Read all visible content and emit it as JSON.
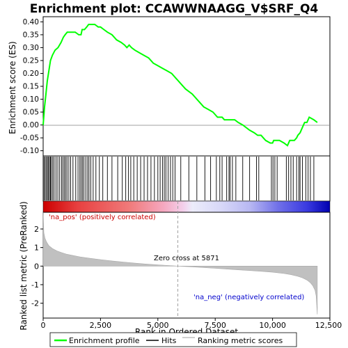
{
  "chart_data": {
    "type": "line",
    "title": "Enrichment plot: CCAWWNAAGG_V$SRF_Q4",
    "top_panel": {
      "ylabel": "Enrichment score (ES)",
      "ylim": [
        -0.12,
        0.42
      ],
      "yticks": [
        -0.1,
        -0.05,
        0.0,
        0.05,
        0.1,
        0.15,
        0.2,
        0.25,
        0.3,
        0.35,
        0.4
      ],
      "ytick_labels": [
        "-0.10",
        "-0.05",
        "0.00",
        "0.05",
        "0.10",
        "0.15",
        "0.20",
        "0.25",
        "0.30",
        "0.35",
        "0.40"
      ],
      "series": [
        {
          "name": "Enrichment profile",
          "color": "#00ff00",
          "x": [
            0,
            60,
            120,
            180,
            250,
            320,
            400,
            520,
            650,
            780,
            880,
            960,
            1050,
            1150,
            1280,
            1400,
            1550,
            1650,
            1700,
            1800,
            1900,
            1980,
            2050,
            2150,
            2250,
            2400,
            2500,
            2650,
            2800,
            3000,
            3200,
            3400,
            3550,
            3650,
            3750,
            3850,
            4000,
            4200,
            4400,
            4600,
            4800,
            5000,
            5200,
            5400,
            5600,
            5800,
            6000,
            6200,
            6500,
            6800,
            7000,
            7200,
            7400,
            7600,
            7800,
            7900,
            8000,
            8100,
            8200,
            8350,
            8500,
            8700,
            9000,
            9200,
            9350,
            9500,
            9700,
            9900,
            10000,
            10050,
            10150,
            10300,
            10500,
            10650,
            10750,
            10850,
            10950,
            11050,
            11100,
            11200,
            11300,
            11400,
            11500,
            11600,
            11800,
            11950
          ],
          "y": [
            0.0,
            0.07,
            0.12,
            0.17,
            0.21,
            0.25,
            0.27,
            0.29,
            0.3,
            0.32,
            0.34,
            0.35,
            0.36,
            0.36,
            0.36,
            0.36,
            0.35,
            0.35,
            0.37,
            0.37,
            0.38,
            0.39,
            0.39,
            0.39,
            0.39,
            0.38,
            0.38,
            0.37,
            0.36,
            0.35,
            0.33,
            0.32,
            0.31,
            0.3,
            0.31,
            0.3,
            0.29,
            0.28,
            0.27,
            0.26,
            0.24,
            0.23,
            0.22,
            0.21,
            0.2,
            0.18,
            0.16,
            0.14,
            0.12,
            0.09,
            0.07,
            0.06,
            0.05,
            0.03,
            0.03,
            0.02,
            0.02,
            0.02,
            0.02,
            0.02,
            0.01,
            0.0,
            -0.02,
            -0.03,
            -0.04,
            -0.04,
            -0.06,
            -0.07,
            -0.07,
            -0.06,
            -0.06,
            -0.06,
            -0.07,
            -0.08,
            -0.06,
            -0.06,
            -0.06,
            -0.05,
            -0.04,
            -0.03,
            -0.01,
            0.01,
            0.01,
            0.03,
            0.02,
            0.01
          ]
        }
      ]
    },
    "hits": {
      "name": "Hits",
      "color": "#000000",
      "positions": [
        40,
        90,
        140,
        190,
        230,
        280,
        320,
        360,
        420,
        480,
        560,
        640,
        720,
        800,
        860,
        920,
        980,
        1040,
        1120,
        1200,
        1300,
        1420,
        1520,
        1600,
        1660,
        1720,
        1780,
        1860,
        1940,
        2000,
        2080,
        2180,
        2300,
        2450,
        2600,
        2800,
        3000,
        3250,
        3450,
        3600,
        3720,
        3820,
        3950,
        4100,
        4250,
        4400,
        4550,
        4700,
        4850,
        5000,
        5100,
        5200,
        5280,
        5350,
        5450,
        5550,
        5650,
        5750,
        6000,
        6350,
        6700,
        7050,
        7300,
        7550,
        7700,
        7800,
        8000,
        8100,
        8150,
        8250,
        8400,
        8700,
        9000,
        9300,
        9400,
        9950,
        10020,
        10100,
        10200,
        10600,
        10700,
        10800,
        10900,
        11050,
        11150,
        11200,
        11300,
        11450,
        11550,
        11650,
        11800
      ]
    },
    "ranking_bar": {
      "stops": [
        {
          "at": 0.0,
          "color": "#cc0000"
        },
        {
          "at": 0.12,
          "color": "#e84040"
        },
        {
          "at": 0.3,
          "color": "#f07a7a"
        },
        {
          "at": 0.42,
          "color": "#f5a8c0"
        },
        {
          "at": 0.49,
          "color": "#f3d0ec"
        },
        {
          "at": 0.52,
          "color": "#ececfb"
        },
        {
          "at": 0.62,
          "color": "#d8d8f8"
        },
        {
          "at": 0.72,
          "color": "#b8b8f2"
        },
        {
          "at": 0.82,
          "color": "#7070e8"
        },
        {
          "at": 0.92,
          "color": "#3a3ae0"
        },
        {
          "at": 1.0,
          "color": "#0000b0"
        }
      ]
    },
    "bottom_panel": {
      "ylabel": "Ranked list metric (PreRanked)",
      "xlabel": "Rank in Ordered Dataset",
      "ylim": [
        -2.8,
        2.9
      ],
      "yticks": [
        -2,
        -1,
        0,
        1,
        2
      ],
      "ytick_labels": [
        "-2",
        "-1",
        "0",
        "1",
        "2"
      ],
      "xlim": [
        0,
        12500
      ],
      "xticks": [
        0,
        2500,
        5000,
        7500,
        10000,
        12500
      ],
      "xtick_labels": [
        "0",
        "2,500",
        "5,000",
        "7,500",
        "10,000",
        "12,500"
      ],
      "zero_cross": 5871,
      "metric_curve": {
        "color": "#c0c0c0",
        "x": [
          0,
          30,
          80,
          150,
          250,
          400,
          600,
          800,
          1000,
          1300,
          1600,
          2000,
          2500,
          3000,
          3500,
          4000,
          4500,
          5000,
          5500,
          5871,
          6500,
          7000,
          7500,
          8000,
          8500,
          9000,
          9500,
          10000,
          10500,
          10800,
          11100,
          11300,
          11500,
          11650,
          11750,
          11850,
          11900,
          11950
        ],
        "y": [
          2.9,
          1.8,
          1.5,
          1.3,
          1.1,
          0.95,
          0.82,
          0.73,
          0.65,
          0.57,
          0.5,
          0.43,
          0.35,
          0.28,
          0.22,
          0.16,
          0.11,
          0.07,
          0.03,
          0.0,
          -0.04,
          -0.08,
          -0.12,
          -0.16,
          -0.2,
          -0.24,
          -0.28,
          -0.33,
          -0.4,
          -0.46,
          -0.55,
          -0.63,
          -0.75,
          -0.9,
          -1.05,
          -1.3,
          -1.6,
          -2.6
        ]
      }
    },
    "annotations": {
      "pos_label": "'na_pos' (positively correlated)",
      "neg_label": "'na_neg' (negatively correlated)",
      "zero_cross_label": "Zero cross at 5871"
    },
    "legend": {
      "placement": "bottom",
      "items": [
        {
          "label": "Enrichment profile",
          "color": "#00ff00"
        },
        {
          "label": "Hits",
          "color": "#000000"
        },
        {
          "label": "Ranking metric scores",
          "color": "#c0c0c0"
        }
      ]
    },
    "colors": {
      "pos_label": "#cc0000",
      "neg_label": "#0000cc"
    }
  }
}
